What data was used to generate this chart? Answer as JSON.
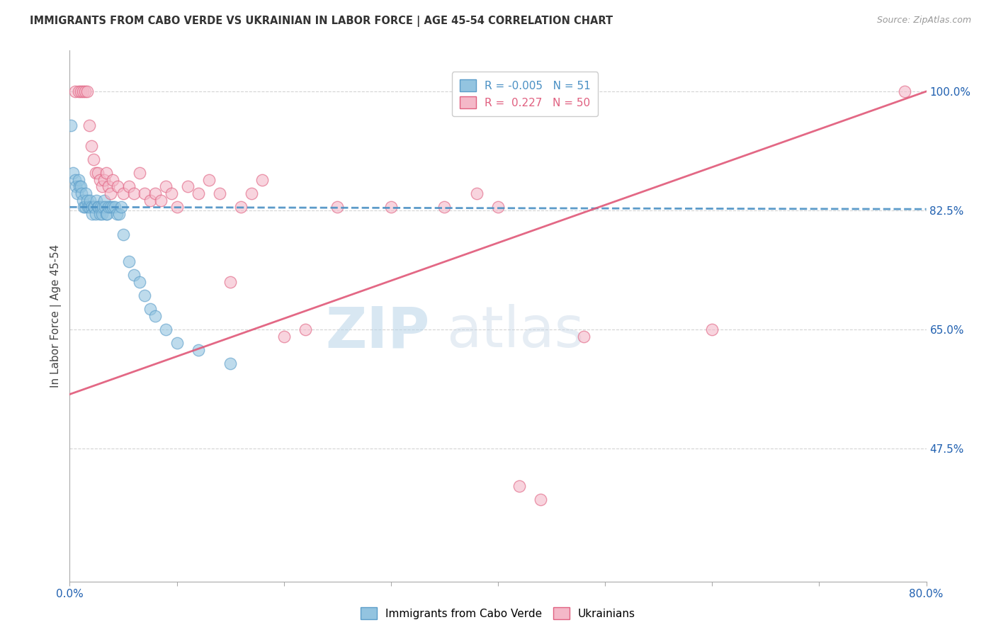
{
  "title": "IMMIGRANTS FROM CABO VERDE VS UKRAINIAN IN LABOR FORCE | AGE 45-54 CORRELATION CHART",
  "source": "Source: ZipAtlas.com",
  "ylabel": "In Labor Force | Age 45-54",
  "xlim": [
    0.0,
    0.8
  ],
  "ylim": [
    0.28,
    1.06
  ],
  "yticks": [
    0.475,
    0.65,
    0.825,
    1.0
  ],
  "ytick_labels": [
    "47.5%",
    "65.0%",
    "82.5%",
    "100.0%"
  ],
  "xticks": [
    0.0,
    0.1,
    0.2,
    0.3,
    0.4,
    0.5,
    0.6,
    0.7,
    0.8
  ],
  "cabo_verde_R": -0.005,
  "cabo_verde_N": 51,
  "ukrainian_R": 0.227,
  "ukrainian_N": 50,
  "cabo_verde_color": "#93c4e0",
  "ukrainian_color": "#f4b8c8",
  "cabo_verde_edge_color": "#5b9dc9",
  "ukrainian_edge_color": "#e06080",
  "cabo_verde_line_color": "#4a90c4",
  "ukrainian_line_color": "#e05878",
  "watermark_zip": "ZIP",
  "watermark_atlas": "atlas",
  "cabo_verde_x": [
    0.001,
    0.003,
    0.005,
    0.006,
    0.007,
    0.008,
    0.009,
    0.01,
    0.011,
    0.012,
    0.013,
    0.014,
    0.015,
    0.016,
    0.017,
    0.018,
    0.019,
    0.02,
    0.021,
    0.022,
    0.023,
    0.024,
    0.025,
    0.026,
    0.027,
    0.028,
    0.029,
    0.03,
    0.031,
    0.032,
    0.033,
    0.034,
    0.035,
    0.036,
    0.038,
    0.04,
    0.042,
    0.044,
    0.046,
    0.048,
    0.05,
    0.055,
    0.06,
    0.065,
    0.07,
    0.075,
    0.08,
    0.09,
    0.1,
    0.12,
    0.15
  ],
  "cabo_verde_y": [
    0.95,
    0.88,
    0.87,
    0.86,
    0.85,
    0.87,
    0.86,
    0.86,
    0.85,
    0.84,
    0.83,
    0.83,
    0.85,
    0.84,
    0.83,
    0.83,
    0.84,
    0.83,
    0.82,
    0.83,
    0.83,
    0.82,
    0.84,
    0.83,
    0.83,
    0.82,
    0.83,
    0.82,
    0.83,
    0.84,
    0.83,
    0.82,
    0.82,
    0.83,
    0.83,
    0.83,
    0.83,
    0.82,
    0.82,
    0.83,
    0.79,
    0.75,
    0.73,
    0.72,
    0.7,
    0.68,
    0.67,
    0.65,
    0.63,
    0.62,
    0.6
  ],
  "ukrainian_x": [
    0.005,
    0.008,
    0.01,
    0.012,
    0.014,
    0.016,
    0.018,
    0.02,
    0.022,
    0.024,
    0.026,
    0.028,
    0.03,
    0.032,
    0.034,
    0.036,
    0.038,
    0.04,
    0.045,
    0.05,
    0.055,
    0.06,
    0.065,
    0.07,
    0.075,
    0.08,
    0.085,
    0.09,
    0.095,
    0.1,
    0.11,
    0.12,
    0.13,
    0.14,
    0.15,
    0.16,
    0.17,
    0.18,
    0.2,
    0.22,
    0.25,
    0.3,
    0.35,
    0.38,
    0.4,
    0.42,
    0.44,
    0.48,
    0.6,
    0.78
  ],
  "ukrainian_y": [
    1.0,
    1.0,
    1.0,
    1.0,
    1.0,
    1.0,
    0.95,
    0.92,
    0.9,
    0.88,
    0.88,
    0.87,
    0.86,
    0.87,
    0.88,
    0.86,
    0.85,
    0.87,
    0.86,
    0.85,
    0.86,
    0.85,
    0.88,
    0.85,
    0.84,
    0.85,
    0.84,
    0.86,
    0.85,
    0.83,
    0.86,
    0.85,
    0.87,
    0.85,
    0.72,
    0.83,
    0.85,
    0.87,
    0.64,
    0.65,
    0.83,
    0.83,
    0.83,
    0.85,
    0.83,
    0.42,
    0.4,
    0.64,
    0.65,
    1.0
  ],
  "cabo_verde_trendline": [
    0.83,
    0.827
  ],
  "ukrainian_trendline": [
    0.555,
    1.0
  ]
}
